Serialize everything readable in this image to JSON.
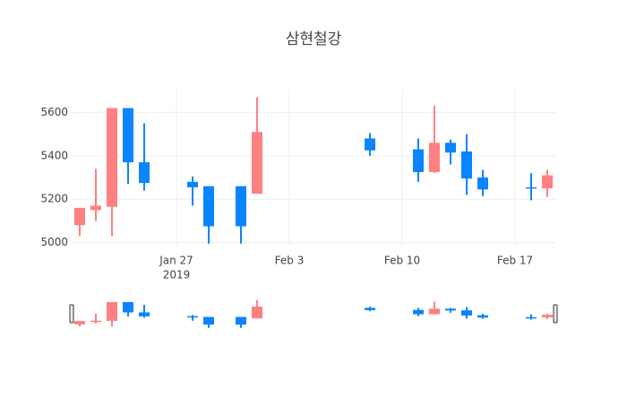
{
  "chart_data": {
    "type": "candlestick",
    "title": "삼현철강",
    "x": [
      "2019-01-21",
      "2019-01-22",
      "2019-01-23",
      "2019-01-24",
      "2019-01-25",
      "2019-01-28",
      "2019-01-29",
      "2019-01-31",
      "2019-02-01",
      "2019-02-08",
      "2019-02-11",
      "2019-02-12",
      "2019-02-13",
      "2019-02-14",
      "2019-02-15",
      "2019-02-18",
      "2019-02-19"
    ],
    "open": [
      5080,
      5150,
      5165,
      5620,
      5370,
      5280,
      5260,
      5260,
      5225,
      5480,
      5430,
      5325,
      5460,
      5420,
      5300,
      5255,
      5250
    ],
    "high": [
      5160,
      5340,
      5620,
      5620,
      5550,
      5305,
      5260,
      5260,
      5670,
      5505,
      5480,
      5630,
      5475,
      5500,
      5335,
      5320,
      5335
    ],
    "low": [
      5030,
      5100,
      5030,
      5270,
      5240,
      5170,
      4995,
      4995,
      5225,
      5400,
      5280,
      5320,
      5360,
      5220,
      5215,
      5195,
      5210
    ],
    "close": [
      5160,
      5170,
      5620,
      5370,
      5275,
      5255,
      5075,
      5075,
      5510,
      5425,
      5325,
      5460,
      5415,
      5295,
      5245,
      5250,
      5310
    ],
    "increasing_color": "#ff8080",
    "decreasing_color": "#0a84ff",
    "xlim": [
      "2019-01-20T12:00",
      "2019-02-19T12:00"
    ],
    "xticks": [
      {
        "value": "2019-01-27",
        "label": "Jan 27"
      },
      {
        "value": "2019-02-03",
        "label": "Feb 3"
      },
      {
        "value": "2019-02-10",
        "label": "Feb 10"
      },
      {
        "value": "2019-02-17",
        "label": "Feb 17"
      }
    ],
    "x_year_label": "2019",
    "ylim": [
      4990,
      5705
    ],
    "yticks": [
      5000,
      5200,
      5400,
      5600
    ],
    "grid": true,
    "rangeslider": true
  }
}
